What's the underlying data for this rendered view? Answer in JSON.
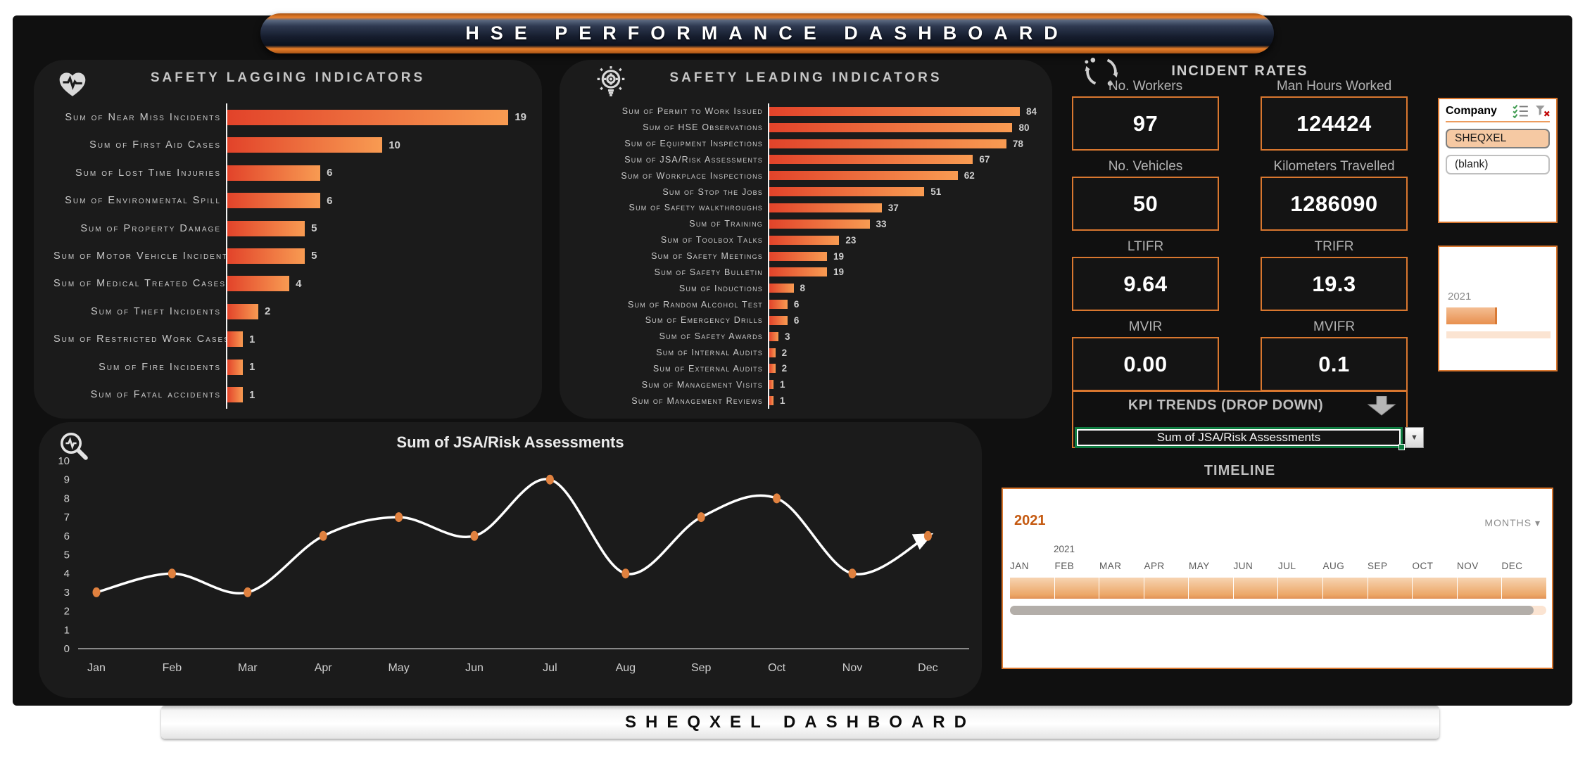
{
  "header": {
    "title": "HSE PERFORMANCE DASHBOARD"
  },
  "chart_data": [
    {
      "id": "lagging",
      "type": "bar",
      "orientation": "horizontal",
      "title": "SAFETY LAGGING INDICATORS",
      "categories": [
        "Sum of Near Miss Incidents",
        "Sum of First Aid Cases",
        "Sum of Lost Time Injuries",
        "Sum of Environmental Spill",
        "Sum of Property Damage",
        "Sum of Motor Vehicle Incidents",
        "Sum of Medical Treated Cases",
        "Sum of Theft Incidents",
        "Sum of Restricted Work Cases",
        "Sum of Fire Incidents",
        "Sum of Fatal accidents"
      ],
      "values": [
        19,
        10,
        6,
        6,
        5,
        5,
        4,
        2,
        1,
        1,
        1
      ],
      "xlim": [
        0,
        19.3
      ],
      "value_labels": true,
      "bar_colors": [
        "#E2432A",
        "#F89B52"
      ]
    },
    {
      "id": "leading",
      "type": "bar",
      "orientation": "horizontal",
      "title": "SAFETY LEADING INDICATORS",
      "categories": [
        "Sum of Permit to Work Issued",
        "Sum of HSE Observations",
        "Sum of Equipment Inspections",
        "Sum of JSA/Risk Assessments",
        "Sum of Workplace Inspections",
        "Sum of Stop the Jobs",
        "Sum of Safety walkthroughs",
        "Sum of Training",
        "Sum of Toolbox Talks",
        "Sum of Safety Meetings",
        "Sum of Safety Bulletin",
        "Sum of Inductions",
        "Sum of Random Alcohol Test",
        "Sum of Emergency Drills",
        "Sum of Safety Awards",
        "Sum of Internal Audits",
        "Sum of External Audits",
        "Sum of Management Visits",
        "Sum of Management Reviews"
      ],
      "values": [
        84,
        80,
        78,
        67,
        62,
        51,
        37,
        33,
        23,
        19,
        19,
        8,
        6,
        6,
        3,
        2,
        2,
        1,
        1
      ],
      "xlim": [
        0,
        88
      ],
      "value_labels": true,
      "bar_colors": [
        "#E2432A",
        "#F89B52"
      ]
    },
    {
      "id": "trend",
      "type": "line",
      "title": "Sum of JSA/Risk Assessments",
      "x": [
        "Jan",
        "Feb",
        "Mar",
        "Apr",
        "May",
        "Jun",
        "Jul",
        "Aug",
        "Sep",
        "Oct",
        "Nov",
        "Dec"
      ],
      "values": [
        3,
        4,
        3,
        6,
        7,
        6,
        9,
        4,
        7,
        8,
        4,
        6
      ],
      "ylim": [
        0,
        10
      ],
      "yticks": [
        0,
        1,
        2,
        3,
        4,
        5,
        6,
        7,
        8,
        9,
        10
      ],
      "grid": false,
      "line_color": "#FFFFFF",
      "marker_color": "#E0813F"
    }
  ],
  "incident_rates": {
    "title": "INCIDENT RATES",
    "cards": [
      {
        "label": "No. Workers",
        "value": "97"
      },
      {
        "label": "Man Hours Worked",
        "value": "124424"
      },
      {
        "label": "No. Vehicles",
        "value": "50"
      },
      {
        "label": "Kilometers Travelled",
        "value": "1286090"
      },
      {
        "label": "LTIFR",
        "value": "9.64"
      },
      {
        "label": "TRIFR",
        "value": "19.3"
      },
      {
        "label": "MVIR",
        "value": "0.00"
      },
      {
        "label": "MVIFR",
        "value": "0.1"
      }
    ]
  },
  "company_slicer": {
    "title": "Company",
    "items": [
      {
        "label": "SHEQXEL",
        "selected": true
      },
      {
        "label": "(blank)",
        "selected": false
      }
    ]
  },
  "year_slicer": {
    "year": "2021"
  },
  "kpi_trends": {
    "title": "KPI TRENDS (DROP DOWN)",
    "selected_option": "Sum of JSA/Risk Assessments",
    "arrow_glyph": "▼"
  },
  "timeline": {
    "title": "TIMELINE",
    "year": "2021",
    "scale_year": "2021",
    "granularity": "MONTHS",
    "granularity_arrow": "▾",
    "months": [
      "JAN",
      "FEB",
      "MAR",
      "APR",
      "MAY",
      "JUN",
      "JUL",
      "AUG",
      "SEP",
      "OCT",
      "NOV",
      "DEC"
    ]
  },
  "footer": {
    "title": "SHEQXEL DASHBOARD"
  },
  "icons": {
    "lagging_panel": "heart-pulse-icon",
    "leading_panel": "lightbulb-gear-icon",
    "incident_rates": "cycle-arrows-icon",
    "trend_panel": "magnifier-pulse-icon",
    "kpi_trends": "block-down-arrow-icon",
    "company_multi_select": "multi-select-icon",
    "company_clear_filter": "clear-filter-icon",
    "kpi_dropdown": "dropdown-arrow-icon",
    "timeline_granularity": "dropdown-arrow-icon"
  },
  "colors": {
    "accent_orange": "#D9772F",
    "bar_gradient": [
      "#E2432A",
      "#F89B52"
    ],
    "panel_bg": "#1B1B1B",
    "canvas_bg": "#101010",
    "selection_green": "#0F7C41",
    "timeline_year": "#C55A11",
    "slicer_selected_fill": "#F6C9A3",
    "kpi_value_text": "#FFFFFF"
  }
}
